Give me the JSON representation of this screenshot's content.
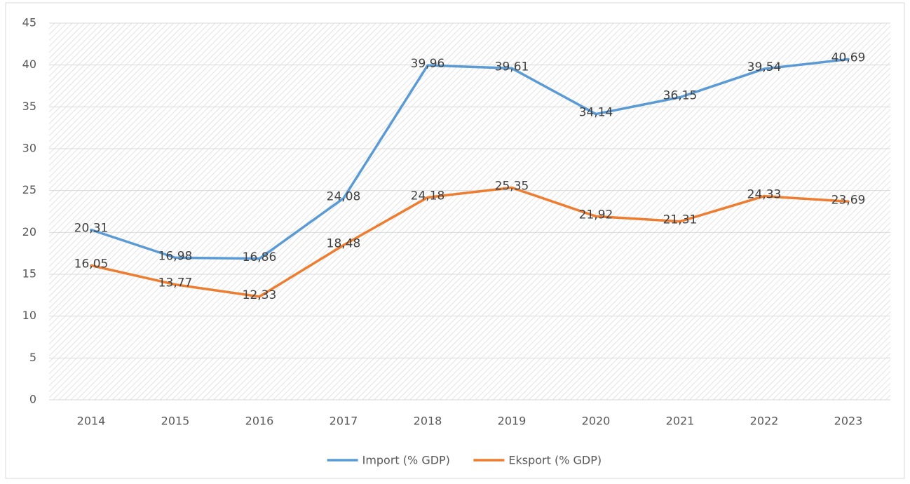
{
  "chart_data": {
    "type": "line",
    "categories": [
      "2014",
      "2015",
      "2016",
      "2017",
      "2018",
      "2019",
      "2020",
      "2021",
      "2022",
      "2023"
    ],
    "series": [
      {
        "name": "Import (% GDP)",
        "color": "#5b9bd5",
        "values": [
          20.31,
          16.98,
          16.86,
          24.08,
          39.96,
          39.61,
          34.14,
          36.15,
          39.54,
          40.69
        ],
        "value_labels": [
          "20,31",
          "16,98",
          "16,86",
          "24,08",
          "39,96",
          "39,61",
          "34,14",
          "36,15",
          "39,54",
          "40,69"
        ]
      },
      {
        "name": "Eksport (% GDP)",
        "color": "#ed7d31",
        "values": [
          16.05,
          13.77,
          12.33,
          18.48,
          24.18,
          25.35,
          21.92,
          21.31,
          24.33,
          23.69
        ],
        "value_labels": [
          "16,05",
          "13,77",
          "12,33",
          "18,48",
          "24,18",
          "25,35",
          "21,92",
          "21,31",
          "24,33",
          "23,69"
        ]
      }
    ],
    "ylim": [
      0,
      45
    ],
    "yticks": [
      0,
      5,
      10,
      15,
      20,
      25,
      30,
      35,
      40,
      45
    ],
    "grid": true,
    "legend": "bottom"
  }
}
